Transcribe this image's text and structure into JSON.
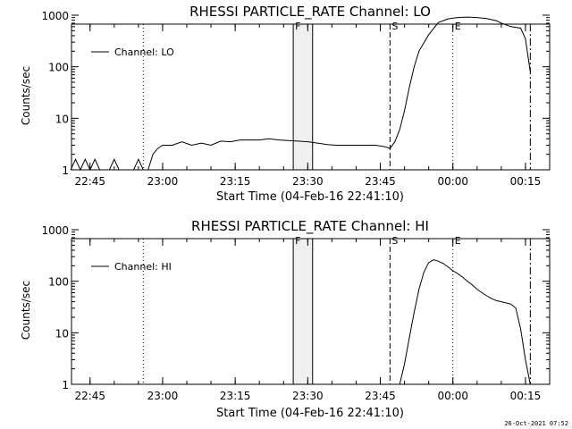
{
  "footer": "26-Oct-2021 07:52",
  "chart_data": [
    {
      "type": "line",
      "title": "RHESSI PARTICLE_RATE Channel: LO",
      "xlabel": "Start Time (04-Feb-16 22:41:10)",
      "ylabel": "Counts/sec",
      "yscale": "log",
      "ylim": [
        1,
        1000
      ],
      "xlim": [
        "22:41:10",
        "00:20"
      ],
      "x_ticks": [
        "22:45",
        "23:00",
        "23:15",
        "23:30",
        "23:45",
        "00:00",
        "00:15"
      ],
      "y_ticks": [
        "1",
        "10",
        "100",
        "1000"
      ],
      "legend": {
        "label": "Channel: LO",
        "position": "top-left"
      },
      "markers": [
        {
          "label": "",
          "time": "22:56",
          "style": "dotted"
        },
        {
          "label": "F",
          "time": "23:27",
          "style": "solid"
        },
        {
          "label": "",
          "time": "23:31",
          "style": "solid"
        },
        {
          "label": "S",
          "time": "23:47",
          "style": "dashed"
        },
        {
          "label": "E",
          "time": "00:00",
          "style": "dotted"
        },
        {
          "label": "",
          "time": "00:16",
          "style": "dashdot"
        }
      ],
      "series": [
        {
          "name": "Channel: LO",
          "x": [
            "22:41",
            "22:42",
            "22:43",
            "22:44",
            "22:45",
            "22:46",
            "22:47",
            "22:48",
            "22:49",
            "22:50",
            "22:51",
            "22:52",
            "22:53",
            "22:54",
            "22:55",
            "22:56",
            "22:57",
            "22:58",
            "22:59",
            "23:00",
            "23:02",
            "23:04",
            "23:06",
            "23:08",
            "23:10",
            "23:12",
            "23:14",
            "23:16",
            "23:18",
            "23:20",
            "23:22",
            "23:24",
            "23:26",
            "23:28",
            "23:30",
            "23:32",
            "23:34",
            "23:36",
            "23:38",
            "23:40",
            "23:42",
            "23:44",
            "23:46",
            "23:47",
            "23:48",
            "23:49",
            "23:50",
            "23:51",
            "23:52",
            "23:53",
            "23:55",
            "23:57",
            "23:59",
            "00:01",
            "00:03",
            "00:05",
            "00:07",
            "00:09",
            "00:10",
            "00:12",
            "00:14",
            "00:15",
            "00:16"
          ],
          "y": [
            1,
            1.6,
            1,
            1.6,
            1,
            1.6,
            1,
            1,
            1,
            1.6,
            1,
            1,
            1,
            1,
            1.6,
            1,
            1,
            2,
            2.6,
            3,
            3,
            3.5,
            3,
            3.3,
            3,
            3.6,
            3.5,
            3.8,
            3.8,
            3.8,
            4,
            3.8,
            3.7,
            3.6,
            3.5,
            3.3,
            3.1,
            3,
            3,
            3,
            3,
            3,
            2.8,
            2.6,
            3.5,
            6,
            14,
            40,
            100,
            200,
            420,
            720,
            850,
            900,
            920,
            900,
            860,
            780,
            700,
            600,
            560,
            350,
            80
          ]
        }
      ]
    },
    {
      "type": "line",
      "title": "RHESSI PARTICLE_RATE Channel: HI",
      "xlabel": "Start Time (04-Feb-16 22:41:10)",
      "ylabel": "Counts/sec",
      "yscale": "log",
      "ylim": [
        1,
        1000
      ],
      "xlim": [
        "22:41:10",
        "00:20"
      ],
      "x_ticks": [
        "22:45",
        "23:00",
        "23:15",
        "23:30",
        "23:45",
        "00:00",
        "00:15"
      ],
      "y_ticks": [
        "1",
        "10",
        "100",
        "1000"
      ],
      "legend": {
        "label": "Channel: HI",
        "position": "top-left"
      },
      "markers": [
        {
          "label": "",
          "time": "22:56",
          "style": "dotted"
        },
        {
          "label": "F",
          "time": "23:27",
          "style": "solid"
        },
        {
          "label": "",
          "time": "23:31",
          "style": "solid"
        },
        {
          "label": "S",
          "time": "23:47",
          "style": "dashed"
        },
        {
          "label": "E",
          "time": "00:00",
          "style": "dotted"
        },
        {
          "label": "",
          "time": "00:16",
          "style": "dashdot"
        }
      ],
      "series": [
        {
          "name": "Channel: HI",
          "x": [
            "23:49",
            "23:50",
            "23:51",
            "23:52",
            "23:53",
            "23:54",
            "23:55",
            "23:56",
            "23:57",
            "23:58",
            "23:59",
            "00:00",
            "00:01",
            "00:02",
            "00:03",
            "00:04",
            "00:05",
            "00:06",
            "00:07",
            "00:08",
            "00:09",
            "00:10",
            "00:11",
            "00:12",
            "00:13",
            "00:14",
            "00:15",
            "00:16"
          ],
          "y": [
            1,
            2.5,
            8,
            25,
            70,
            150,
            230,
            260,
            245,
            220,
            190,
            160,
            140,
            120,
            100,
            85,
            70,
            60,
            52,
            46,
            42,
            40,
            38,
            36,
            30,
            12,
            3,
            1
          ]
        }
      ]
    }
  ]
}
